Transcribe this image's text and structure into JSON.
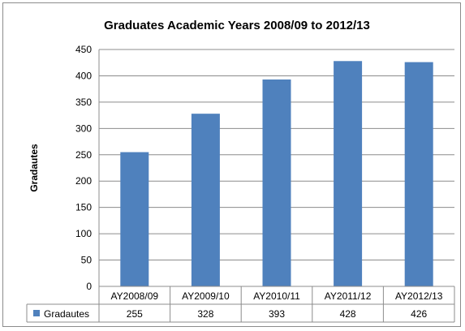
{
  "chart_data": {
    "type": "bar",
    "title": "Graduates Academic Years 2008/09 to 2012/13",
    "ylabel": "Gradautes",
    "categories": [
      "AY2008/09",
      "AY2009/10",
      "AY2010/11",
      "AY2011/12",
      "AY2012/13"
    ],
    "series": [
      {
        "name": "Gradautes",
        "values": [
          255,
          328,
          393,
          428,
          426
        ],
        "color": "#4f81bd"
      }
    ],
    "ylim": [
      0,
      450
    ],
    "yticks": [
      0,
      50,
      100,
      150,
      200,
      250,
      300,
      350,
      400,
      450
    ],
    "grid": true,
    "data_table": true
  }
}
